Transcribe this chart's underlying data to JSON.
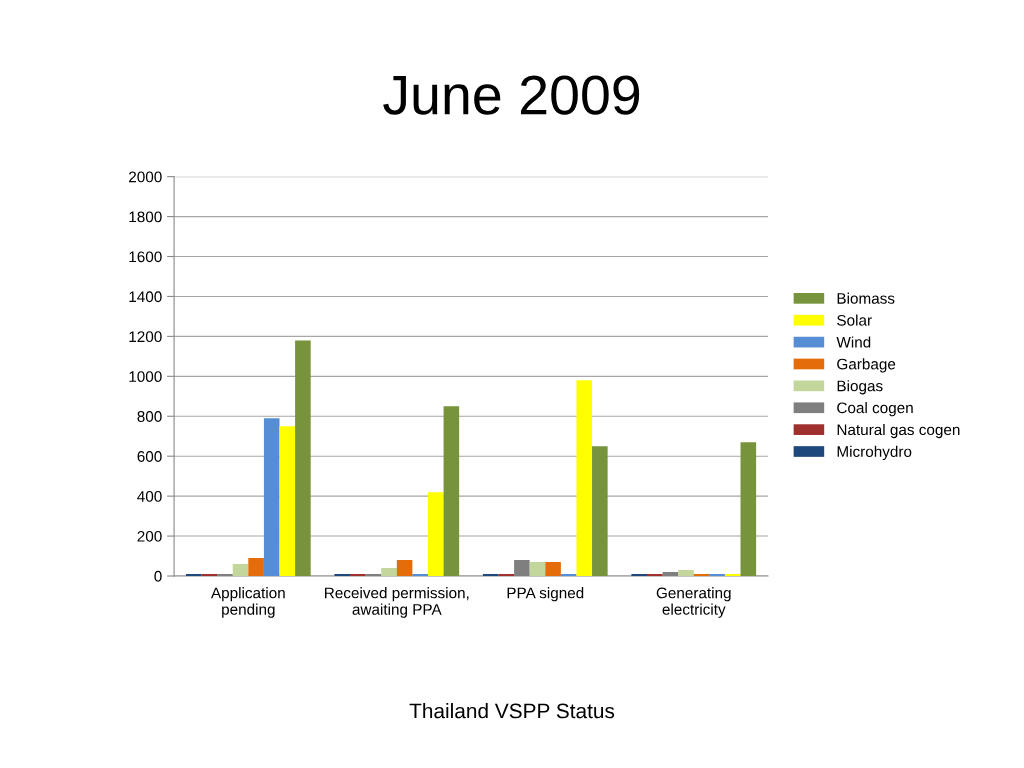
{
  "chart_data": {
    "type": "bar",
    "title": "June 2009",
    "categories": [
      "Application pending",
      "Received permission, awaiting PPA",
      "PPA signed",
      "Generating electricity"
    ],
    "series": [
      {
        "name": "Microhydro",
        "color": "#1f497d",
        "values": [
          10,
          10,
          10,
          10
        ]
      },
      {
        "name": "Natural gas cogen",
        "color": "#a0302d",
        "values": [
          10,
          10,
          10,
          10
        ]
      },
      {
        "name": "Coal cogen",
        "color": "#7f7f7f",
        "values": [
          10,
          10,
          80,
          20
        ]
      },
      {
        "name": "Biogas",
        "color": "#c3d69b",
        "values": [
          60,
          40,
          70,
          30
        ]
      },
      {
        "name": "Garbage",
        "color": "#e46c0a",
        "values": [
          90,
          80,
          70,
          10
        ]
      },
      {
        "name": "Wind",
        "color": "#558ed5",
        "values": [
          790,
          10,
          10,
          10
        ]
      },
      {
        "name": "Solar",
        "color": "#ffff00",
        "values": [
          750,
          420,
          980,
          10
        ]
      },
      {
        "name": "Biomass",
        "color": "#77933c",
        "values": [
          1180,
          850,
          650,
          670
        ]
      }
    ],
    "ylim": [
      0,
      2000
    ],
    "yticks": [
      0,
      200,
      400,
      600,
      800,
      1000,
      1200,
      1400,
      1600,
      1800,
      2000
    ],
    "grid": "y",
    "legend": "right",
    "annotations": [
      "Thailand VSPP Status"
    ]
  }
}
